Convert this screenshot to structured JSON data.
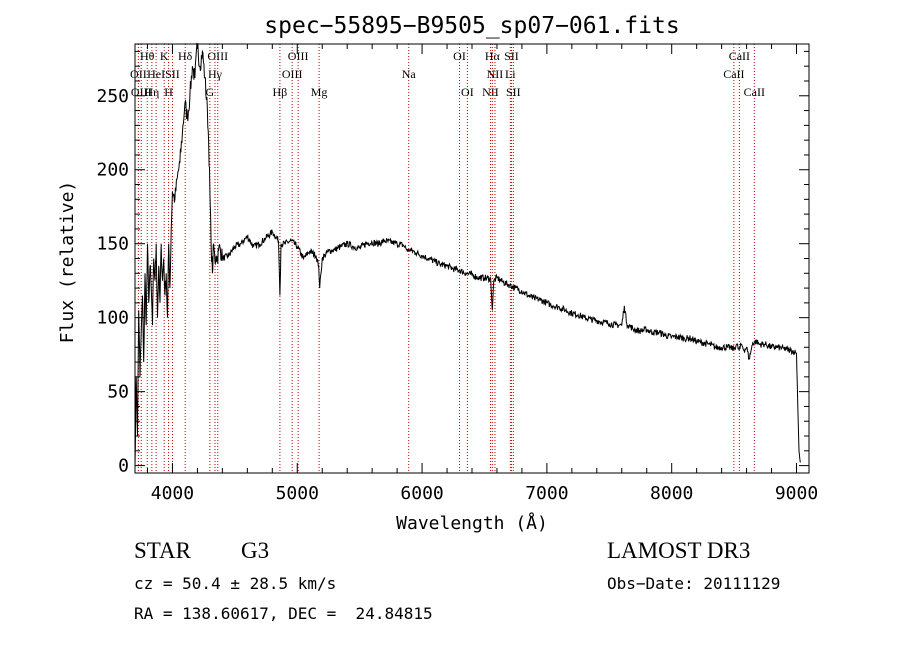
{
  "chart_data": {
    "type": "line",
    "title": "spec−55895−B9505_sp07−061.fits",
    "xlabel": "Wavelength (Å)",
    "ylabel": "Flux (relative)",
    "xlim": [
      3700,
      9100
    ],
    "ylim": [
      -5,
      285
    ],
    "xticks": [
      4000,
      5000,
      6000,
      7000,
      8000,
      9000
    ],
    "yticks": [
      0,
      50,
      100,
      150,
      200,
      250
    ],
    "series": [
      {
        "name": "spectrum",
        "x": [
          3700,
          3710,
          3720,
          3730,
          3740,
          3750,
          3760,
          3770,
          3780,
          3790,
          3800,
          3810,
          3820,
          3830,
          3840,
          3850,
          3860,
          3870,
          3880,
          3890,
          3900,
          3910,
          3920,
          3930,
          3940,
          3950,
          3960,
          3970,
          3980,
          3990,
          4000,
          4020,
          4040,
          4060,
          4080,
          4100,
          4120,
          4140,
          4160,
          4180,
          4200,
          4220,
          4240,
          4260,
          4280,
          4290,
          4300,
          4310,
          4320,
          4330,
          4340,
          4350,
          4360,
          4370,
          4380,
          4400,
          4450,
          4500,
          4550,
          4600,
          4650,
          4700,
          4750,
          4800,
          4850,
          4861,
          4870,
          4900,
          4950,
          5000,
          5050,
          5100,
          5150,
          5172,
          5180,
          5200,
          5250,
          5300,
          5350,
          5400,
          5450,
          5500,
          5550,
          5600,
          5650,
          5700,
          5750,
          5800,
          5850,
          5890,
          5900,
          5950,
          6000,
          6050,
          6100,
          6150,
          6200,
          6250,
          6300,
          6350,
          6400,
          6450,
          6500,
          6550,
          6563,
          6575,
          6600,
          6650,
          6700,
          6750,
          6800,
          6850,
          6900,
          6950,
          7000,
          7050,
          7100,
          7150,
          7200,
          7250,
          7300,
          7350,
          7400,
          7450,
          7500,
          7550,
          7600,
          7620,
          7640,
          7650,
          7700,
          7750,
          7800,
          7850,
          7900,
          7950,
          8000,
          8050,
          8100,
          8150,
          8200,
          8250,
          8300,
          8350,
          8400,
          8450,
          8500,
          8520,
          8540,
          8560,
          8580,
          8600,
          8620,
          8650,
          8680,
          8700,
          8750,
          8800,
          8850,
          8900,
          8950,
          8980,
          9000,
          9010,
          9020,
          9030
        ],
        "y": [
          0,
          60,
          20,
          105,
          60,
          90,
          115,
          70,
          130,
          95,
          150,
          110,
          135,
          120,
          95,
          140,
          125,
          150,
          100,
          135,
          110,
          150,
          125,
          140,
          115,
          130,
          100,
          150,
          120,
          160,
          185,
          180,
          195,
          205,
          225,
          245,
          235,
          250,
          270,
          262,
          285,
          270,
          280,
          262,
          240,
          220,
          185,
          150,
          130,
          150,
          138,
          142,
          140,
          145,
          148,
          140,
          142,
          148,
          150,
          155,
          148,
          150,
          154,
          158,
          152,
          115,
          150,
          150,
          152,
          148,
          140,
          145,
          142,
          135,
          120,
          140,
          145,
          146,
          148,
          150,
          148,
          147,
          150,
          151,
          150,
          152,
          151,
          150,
          149,
          145,
          146,
          144,
          142,
          140,
          138,
          136,
          135,
          133,
          132,
          130,
          129,
          127,
          127,
          126,
          105,
          125,
          127,
          124,
          122,
          120,
          118,
          115,
          113,
          112,
          110,
          108,
          107,
          105,
          103,
          102,
          100,
          99,
          98,
          97,
          96,
          95,
          95,
          108,
          96,
          95,
          92,
          91,
          92,
          90,
          90,
          88,
          87,
          87,
          86,
          86,
          84,
          83,
          82,
          80,
          80,
          80,
          79,
          82,
          78,
          82,
          78,
          80,
          72,
          83,
          84,
          82,
          82,
          80,
          80,
          79,
          78,
          77,
          76,
          40,
          10,
          2
        ]
      }
    ],
    "lines": [
      {
        "wl": 3727,
        "label": "OII",
        "row": 1
      },
      {
        "wl": 3750,
        "label": "OIII",
        "row": 2
      },
      {
        "wl": 3798,
        "label": "Hθ",
        "row": 0
      },
      {
        "wl": 3835,
        "label": "Hη",
        "row": 2
      },
      {
        "wl": 3869,
        "label": "HeI",
        "row": 1
      },
      {
        "wl": 3934,
        "label": "K",
        "row": 0
      },
      {
        "wl": 3969,
        "label": "H",
        "row": 2
      },
      {
        "wl": 4000,
        "label": "SII",
        "row": 1
      },
      {
        "wl": 4102,
        "label": "Hδ",
        "row": 0
      },
      {
        "wl": 4300,
        "label": "G",
        "row": 2
      },
      {
        "wl": 4341,
        "label": "Hγ",
        "row": 1
      },
      {
        "wl": 4363,
        "label": "OIII",
        "row": 0
      },
      {
        "wl": 4861,
        "label": "Hβ",
        "row": 2
      },
      {
        "wl": 4959,
        "label": "OIII",
        "row": 1
      },
      {
        "wl": 5007,
        "label": "OIII",
        "row": 0
      },
      {
        "wl": 5175,
        "label": "Mg",
        "row": 2
      },
      {
        "wl": 5893,
        "label": "Na",
        "row": 1
      },
      {
        "wl": 6300,
        "label": "OI",
        "row": 0
      },
      {
        "wl": 6363,
        "label": "OI",
        "row": 2
      },
      {
        "wl": 6548,
        "label": "NII",
        "row": 2
      },
      {
        "wl": 6563,
        "label": "Hα",
        "row": 0
      },
      {
        "wl": 6584,
        "label": "NII",
        "row": 1
      },
      {
        "wl": 6707,
        "label": "Li",
        "row": 1
      },
      {
        "wl": 6716,
        "label": "SII",
        "row": 0
      },
      {
        "wl": 6731,
        "label": "SII",
        "row": 2
      },
      {
        "wl": 8498,
        "label": "CaII",
        "row": 1
      },
      {
        "wl": 8542,
        "label": "CaII",
        "row": 0
      },
      {
        "wl": 8662,
        "label": "CaII",
        "row": 2
      }
    ],
    "colors": {
      "spectrum": "#000000",
      "lines": "#c00000",
      "axes": "#000000"
    }
  },
  "info": {
    "object_class": "STAR",
    "subclass": "G3",
    "survey": "LAMOST DR3",
    "redshift": "cz = 50.4 ± 28.5 km/s",
    "obs_date": "Obs−Date: 20111129",
    "coords": "RA = 138.60617, DEC =  24.84815"
  }
}
